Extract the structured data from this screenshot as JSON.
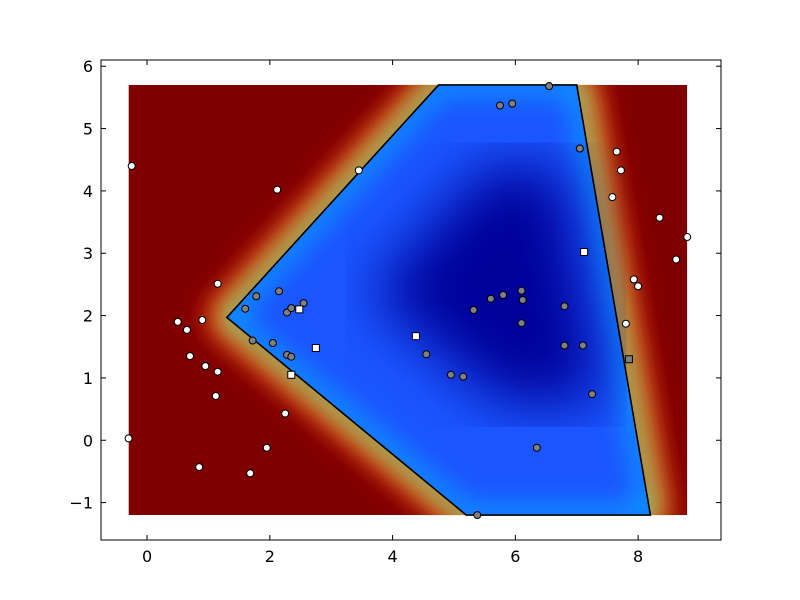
{
  "chart_data": {
    "type": "scatter",
    "title": "",
    "xlabel": "",
    "ylabel": "",
    "xlim": [
      -0.75,
      9.35
    ],
    "ylim": [
      -1.6,
      6.1
    ],
    "heatmap_extent": {
      "x": [
        -0.3,
        8.8
      ],
      "y": [
        -1.2,
        5.7
      ]
    },
    "x_ticks": [
      0,
      2,
      4,
      6,
      8
    ],
    "y_ticks": [
      -1,
      0,
      1,
      2,
      3,
      4,
      5,
      6
    ],
    "x_tick_labels": [
      "0",
      "2",
      "4",
      "6",
      "8"
    ],
    "y_tick_labels": [
      "−1",
      "0",
      "1",
      "2",
      "3",
      "4",
      "5",
      "6"
    ],
    "grid": false,
    "colormap": "jet",
    "boundary_polygon": [
      [
        1.3,
        1.97
      ],
      [
        4.75,
        5.7
      ],
      [
        7.0,
        5.7
      ],
      [
        8.2,
        -1.2
      ],
      [
        5.2,
        -1.2
      ]
    ],
    "colors": {
      "class_white": "#ffffff",
      "class_gray": "#808080",
      "outline": "#000000",
      "boundary": "#000000"
    },
    "series": [
      {
        "marker": "circle",
        "color": "white",
        "points": [
          [
            -0.25,
            4.4
          ],
          [
            -0.3,
            0.03
          ],
          [
            0.5,
            1.9
          ],
          [
            0.65,
            1.77
          ],
          [
            0.9,
            1.93
          ],
          [
            0.7,
            1.35
          ],
          [
            0.95,
            1.19
          ],
          [
            1.15,
            1.1
          ],
          [
            1.15,
            2.51
          ],
          [
            1.12,
            0.71
          ],
          [
            0.85,
            -0.43
          ],
          [
            1.68,
            -0.53
          ],
          [
            1.95,
            -0.12
          ],
          [
            2.25,
            0.43
          ],
          [
            2.12,
            4.02
          ],
          [
            3.45,
            4.33
          ],
          [
            7.05,
            4.68
          ],
          [
            7.65,
            4.63
          ],
          [
            7.72,
            4.33
          ],
          [
            7.58,
            3.9
          ],
          [
            8.35,
            3.57
          ],
          [
            8.8,
            3.26
          ],
          [
            8.62,
            2.9
          ],
          [
            7.93,
            2.58
          ],
          [
            8.0,
            2.47
          ],
          [
            7.8,
            1.87
          ],
          [
            6.55,
            5.68
          ]
        ]
      },
      {
        "marker": "circle",
        "color": "gray",
        "points": [
          [
            1.6,
            2.11
          ],
          [
            1.78,
            2.31
          ],
          [
            2.15,
            2.39
          ],
          [
            2.28,
            2.05
          ],
          [
            2.35,
            2.12
          ],
          [
            2.55,
            2.2
          ],
          [
            2.28,
            1.37
          ],
          [
            2.05,
            1.56
          ],
          [
            2.35,
            1.34
          ],
          [
            1.72,
            1.6
          ],
          [
            4.55,
            1.38
          ],
          [
            4.95,
            1.05
          ],
          [
            5.15,
            1.02
          ],
          [
            5.32,
            2.09
          ],
          [
            5.6,
            2.27
          ],
          [
            5.8,
            2.33
          ],
          [
            6.1,
            2.4
          ],
          [
            6.12,
            2.25
          ],
          [
            6.1,
            1.88
          ],
          [
            6.8,
            2.15
          ],
          [
            6.8,
            1.52
          ],
          [
            7.1,
            1.52
          ],
          [
            7.25,
            0.74
          ],
          [
            6.35,
            -0.12
          ],
          [
            5.38,
            -1.2
          ],
          [
            5.75,
            5.37
          ],
          [
            5.95,
            5.4
          ],
          [
            7.05,
            4.68
          ],
          [
            6.55,
            5.68
          ]
        ]
      },
      {
        "marker": "square",
        "color": "white",
        "points": [
          [
            2.48,
            2.1
          ],
          [
            2.75,
            1.48
          ],
          [
            2.35,
            1.05
          ],
          [
            4.38,
            1.67
          ],
          [
            7.12,
            3.02
          ]
        ]
      },
      {
        "marker": "square",
        "color": "gray",
        "points": [
          [
            7.85,
            1.3
          ]
        ]
      }
    ]
  }
}
